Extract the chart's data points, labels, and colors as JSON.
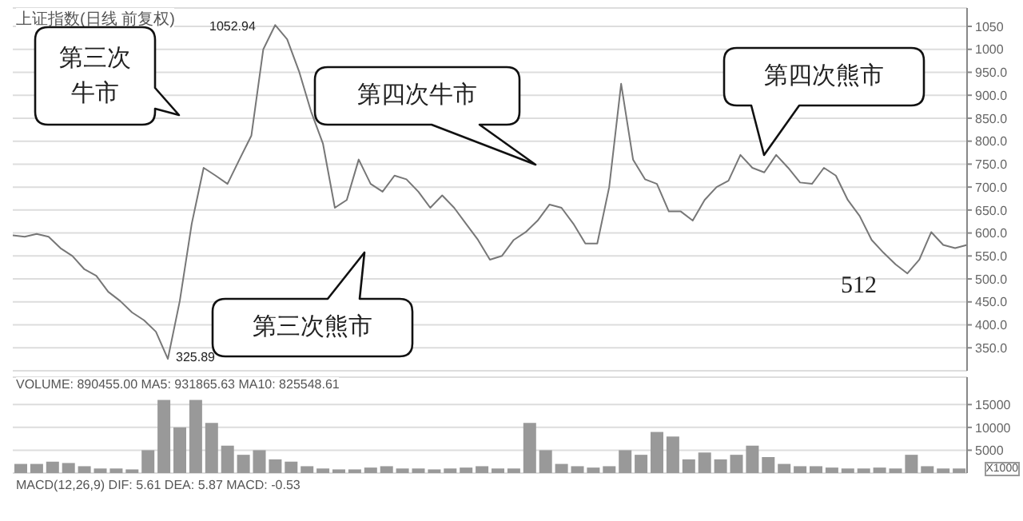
{
  "chart_data": [
    {
      "type": "line",
      "title": "上证指数(日线 前复权)",
      "categories": [
        null,
        null,
        null,
        null,
        null,
        null,
        null,
        null,
        null,
        null,
        null,
        null,
        null,
        null,
        null,
        null,
        null,
        null,
        null,
        null,
        null,
        null,
        null,
        null,
        null,
        null,
        null,
        null,
        null,
        null,
        null,
        null,
        null,
        null,
        null,
        null,
        null,
        null,
        null,
        null,
        null,
        null,
        null,
        null,
        null,
        null,
        null,
        null,
        null,
        null,
        null,
        null,
        null,
        null,
        null,
        null,
        null,
        null,
        null,
        null,
        null,
        null,
        null,
        null,
        null,
        null,
        null,
        null,
        null,
        null,
        null,
        null,
        null,
        null,
        null,
        null,
        null,
        null,
        null,
        null,
        null
      ],
      "values": [
        595,
        592,
        598,
        592,
        567,
        550,
        521,
        507,
        472,
        452,
        427,
        410,
        385,
        325.89,
        452,
        620,
        742,
        725,
        707,
        760,
        812,
        1000,
        1052.94,
        1022,
        952,
        865,
        795,
        655,
        672,
        760,
        707,
        690,
        725,
        717,
        690,
        655,
        682,
        655,
        620,
        585,
        542,
        550,
        585,
        602,
        627,
        662,
        655,
        620,
        577,
        577,
        700,
        925,
        760,
        717,
        707,
        647,
        647,
        627,
        672,
        700,
        714,
        770,
        742,
        732,
        770,
        742,
        710,
        707,
        742,
        725,
        672,
        637,
        585,
        557,
        532,
        512,
        542,
        602,
        574,
        567,
        574
      ],
      "color": "#777777",
      "ylim": [
        300,
        1090
      ],
      "yticks": [
        {
          "value": 350,
          "label": "350.0"
        },
        {
          "value": 400,
          "label": "400.0"
        },
        {
          "value": 450,
          "label": "450.0"
        },
        {
          "value": 500,
          "label": "500.0"
        },
        {
          "value": 550,
          "label": "550.0"
        },
        {
          "value": 600,
          "label": "600.0"
        },
        {
          "value": 650,
          "label": "650.0"
        },
        {
          "value": 700,
          "label": "700.0"
        },
        {
          "value": 750,
          "label": "750.0"
        },
        {
          "value": 800,
          "label": "800.0"
        },
        {
          "value": 850,
          "label": "850.0"
        },
        {
          "value": 900,
          "label": "900.0"
        },
        {
          "value": 950,
          "label": "950.0"
        },
        {
          "value": 1000,
          "label": "1000"
        },
        {
          "value": 1050,
          "label": "1050"
        }
      ],
      "grid": "y",
      "tick_labels": "y",
      "annotations": [
        "第三次牛市",
        "第四次牛市",
        "第三次熊市",
        "第四次熊市",
        "1052.94",
        "325.89",
        "512"
      ]
    },
    {
      "type": "bar",
      "title": "VOLUME: 890455.00 MA5: 931865.63 MA10: 825548.61",
      "ylabel": "X1000",
      "categories": [
        null,
        null,
        null,
        null,
        null,
        null,
        null,
        null,
        null,
        null,
        null,
        null,
        null,
        null,
        null,
        null,
        null,
        null,
        null,
        null,
        null,
        null,
        null,
        null,
        null,
        null,
        null,
        null,
        null,
        null,
        null,
        null,
        null,
        null,
        null,
        null,
        null,
        null,
        null,
        null,
        null,
        null,
        null,
        null,
        null,
        null,
        null,
        null,
        null,
        null,
        null,
        null,
        null,
        null,
        null,
        null,
        null,
        null,
        null,
        null
      ],
      "values": [
        2000,
        2000,
        2500,
        2200,
        1500,
        1000,
        1000,
        800,
        5000,
        16000,
        10000,
        16000,
        11000,
        6000,
        4000,
        5000,
        3000,
        2500,
        1500,
        1000,
        800,
        800,
        1200,
        1500,
        1000,
        1000,
        800,
        1000,
        1200,
        1500,
        1000,
        1000,
        11000,
        5000,
        2000,
        1500,
        1200,
        1500,
        5000,
        4000,
        9000,
        8000,
        3000,
        4500,
        3000,
        4000,
        6000,
        3500,
        2000,
        1500,
        1500,
        1200,
        1000,
        1000,
        1200,
        1000,
        4000,
        1500,
        1000,
        1000
      ],
      "color": "#999999",
      "ylim": [
        0,
        21000
      ],
      "yticks": [
        5000,
        10000,
        15000
      ],
      "grid": "y",
      "tick_labels": "y",
      "annotations": [
        "MACD(12,26,9) DIF: 5.61 DEA: 5.87 MACD: -0.53"
      ]
    }
  ]
}
